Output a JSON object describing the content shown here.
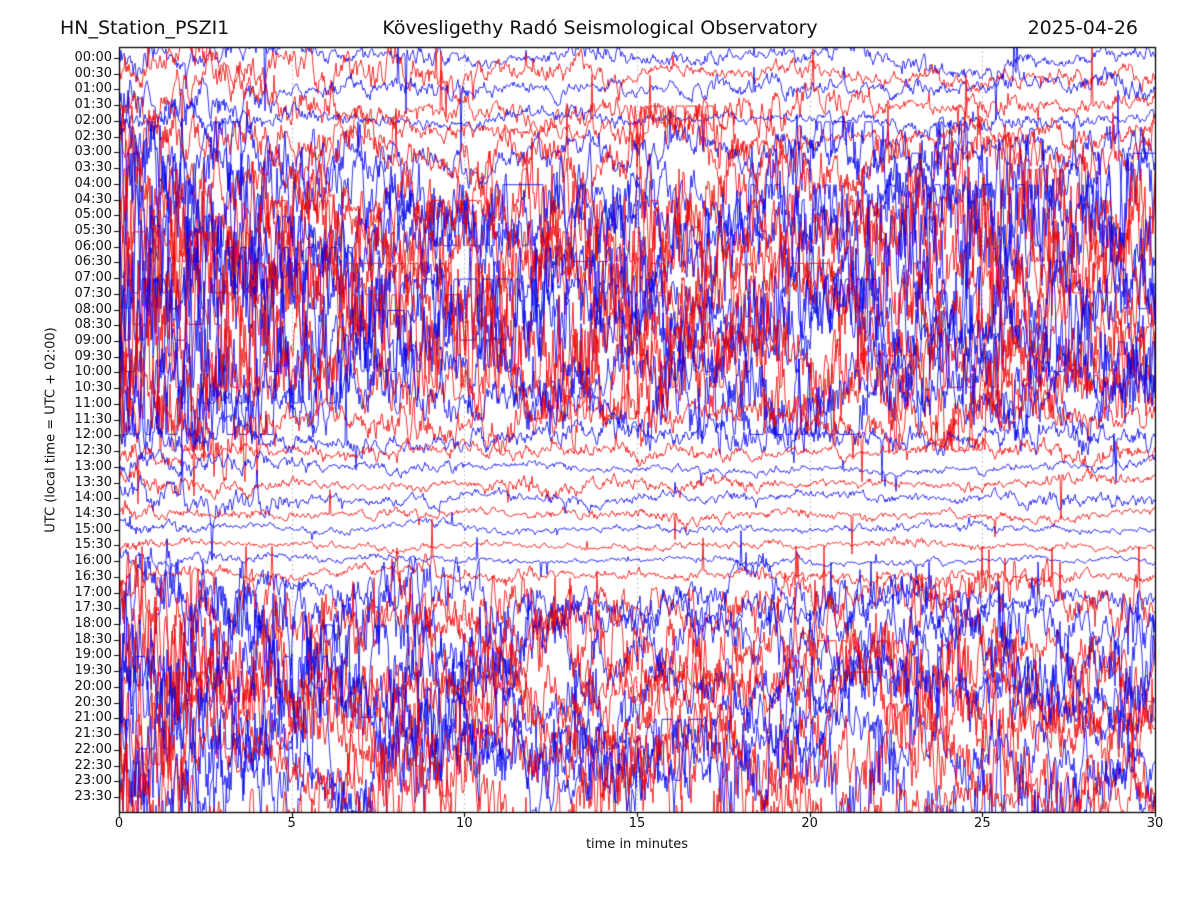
{
  "header": {
    "station": "HN_Station_PSZI1",
    "observatory": "Kövesligethy Radó Seismological Observatory",
    "date": "2025-04-26"
  },
  "axes": {
    "xlabel": "time in minutes",
    "ylabel": "UTC (local time = UTC + 02:00)",
    "x_ticks": [
      0,
      5,
      10,
      15,
      20,
      25,
      30
    ],
    "x_range": [
      0,
      30
    ],
    "grid_interval_minutes": 5,
    "grid_color": "#9a9a9a",
    "spine_color": "#000000"
  },
  "chart_data": {
    "type": "line",
    "subtype": "helicorder-dayplot",
    "title": "HN_Station_PSZI1 | Kövesligethy Radó Seismological Observatory | 2025-04-26",
    "xlabel": "time in minutes",
    "ylabel": "UTC (local time = UTC + 02:00)",
    "xlim": [
      0,
      30
    ],
    "minutes_per_row": 30,
    "legend": "none",
    "grid": "vertical dotted lines every 5 minutes",
    "trace_colors": {
      "blue": "#0000ee",
      "red": "#ee0000"
    },
    "rows": [
      {
        "utc": "00:00",
        "color": "blue",
        "amp": 11
      },
      {
        "utc": "00:30",
        "color": "red",
        "amp": 11
      },
      {
        "utc": "01:00",
        "color": "blue",
        "amp": 11
      },
      {
        "utc": "01:30",
        "color": "red",
        "amp": 12
      },
      {
        "utc": "02:00",
        "color": "blue",
        "amp": 8
      },
      {
        "utc": "02:30",
        "color": "red",
        "amp": 14
      },
      {
        "utc": "03:00",
        "color": "blue",
        "amp": 22
      },
      {
        "utc": "03:30",
        "color": "red",
        "amp": 30
      },
      {
        "utc": "04:00",
        "color": "blue",
        "amp": 40
      },
      {
        "utc": "04:30",
        "color": "red",
        "amp": 48
      },
      {
        "utc": "05:00",
        "color": "blue",
        "amp": 52
      },
      {
        "utc": "05:30",
        "color": "red",
        "amp": 55
      },
      {
        "utc": "06:00",
        "color": "blue",
        "amp": 58
      },
      {
        "utc": "06:30",
        "color": "red",
        "amp": 58
      },
      {
        "utc": "07:00",
        "color": "blue",
        "amp": 58
      },
      {
        "utc": "07:30",
        "color": "red",
        "amp": 58
      },
      {
        "utc": "08:00",
        "color": "blue",
        "amp": 58
      },
      {
        "utc": "08:30",
        "color": "red",
        "amp": 58
      },
      {
        "utc": "09:00",
        "color": "blue",
        "amp": 55
      },
      {
        "utc": "09:30",
        "color": "red",
        "amp": 52
      },
      {
        "utc": "10:00",
        "color": "blue",
        "amp": 48
      },
      {
        "utc": "10:30",
        "color": "red",
        "amp": 42
      },
      {
        "utc": "11:00",
        "color": "blue",
        "amp": 34
      },
      {
        "utc": "11:30",
        "color": "red",
        "amp": 22
      },
      {
        "utc": "12:00",
        "color": "blue",
        "amp": 13
      },
      {
        "utc": "12:30",
        "color": "red",
        "amp": 9
      },
      {
        "utc": "13:00",
        "color": "blue",
        "amp": 6
      },
      {
        "utc": "13:30",
        "color": "red",
        "amp": 7
      },
      {
        "utc": "14:00",
        "color": "blue",
        "amp": 8
      },
      {
        "utc": "14:30",
        "color": "red",
        "amp": 6
      },
      {
        "utc": "15:00",
        "color": "blue",
        "amp": 5
      },
      {
        "utc": "15:30",
        "color": "red",
        "amp": 5
      },
      {
        "utc": "16:00",
        "color": "blue",
        "amp": 4
      },
      {
        "utc": "16:30",
        "color": "red",
        "amp": 7
      },
      {
        "utc": "17:00",
        "color": "blue",
        "amp": 18
      },
      {
        "utc": "17:30",
        "color": "red",
        "amp": 26
      },
      {
        "utc": "18:00",
        "color": "blue",
        "amp": 32
      },
      {
        "utc": "18:30",
        "color": "red",
        "amp": 38
      },
      {
        "utc": "19:00",
        "color": "blue",
        "amp": 40
      },
      {
        "utc": "19:30",
        "color": "red",
        "amp": 40
      },
      {
        "utc": "20:00",
        "color": "blue",
        "amp": 40
      },
      {
        "utc": "20:30",
        "color": "red",
        "amp": 42
      },
      {
        "utc": "21:00",
        "color": "blue",
        "amp": 42
      },
      {
        "utc": "21:30",
        "color": "red",
        "amp": 40
      },
      {
        "utc": "22:00",
        "color": "blue",
        "amp": 40
      },
      {
        "utc": "22:30",
        "color": "red",
        "amp": 40
      },
      {
        "utc": "23:00",
        "color": "blue",
        "amp": 40
      },
      {
        "utc": "23:30",
        "color": "red",
        "amp": 36
      }
    ]
  }
}
